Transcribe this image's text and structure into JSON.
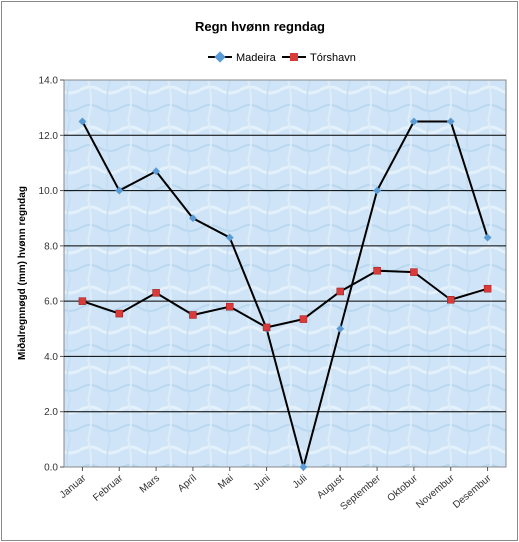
{
  "chart_data": {
    "type": "line",
    "title": "Regn hvønn regndag",
    "xlabel": "",
    "ylabel": "Miðalregnnøgd (mm) hvønn regndag",
    "categories": [
      "Januar",
      "Februar",
      "Mars",
      "Apríl",
      "Mai",
      "Juni",
      "Juli",
      "August",
      "September",
      "Oktobur",
      "Novembur",
      "Desembur"
    ],
    "ylim": [
      0,
      14
    ],
    "yticks": [
      "0.0",
      "2.0",
      "4.0",
      "6.0",
      "8.0",
      "10.0",
      "12.0",
      "14.0"
    ],
    "grid": true,
    "legend_position": "top-center",
    "series": [
      {
        "name": "Madeira",
        "color": "#5b9bd5",
        "marker": "diamond",
        "values": [
          12.5,
          10.0,
          10.7,
          9.0,
          8.3,
          5.0,
          0.0,
          5.0,
          10.0,
          12.5,
          12.5,
          8.3
        ]
      },
      {
        "name": "Tórshavn",
        "color": "#d93a3a",
        "marker": "square",
        "values": [
          6.0,
          5.55,
          6.3,
          5.5,
          5.8,
          5.05,
          5.35,
          6.35,
          7.1,
          7.05,
          6.05,
          6.45
        ]
      }
    ]
  }
}
